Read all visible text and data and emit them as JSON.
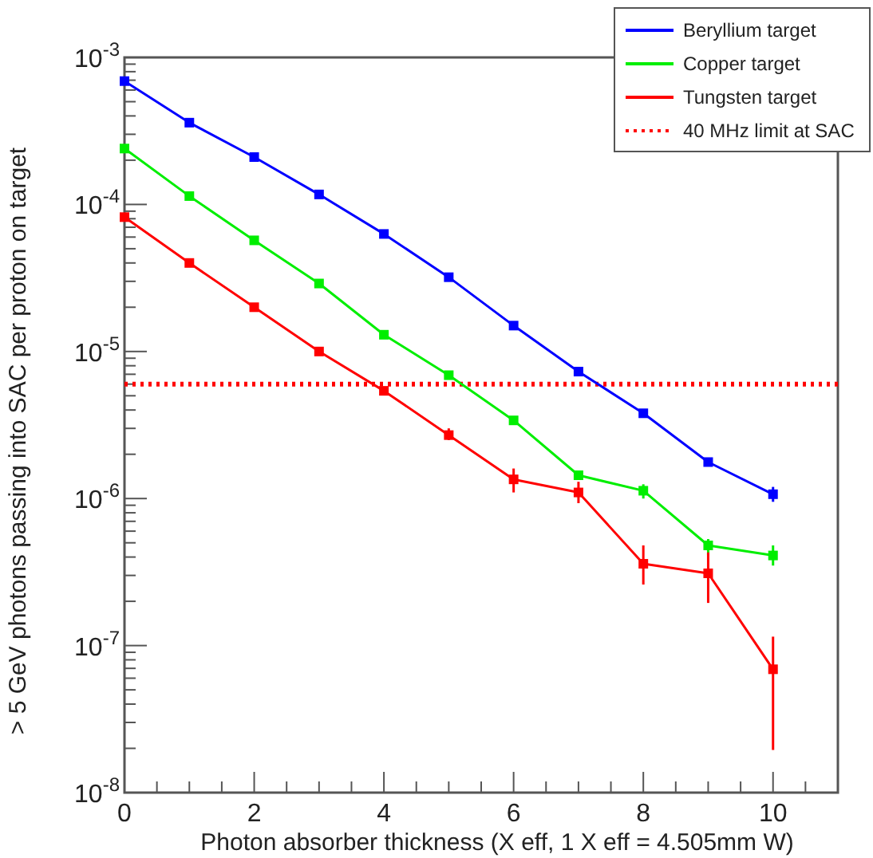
{
  "chart_data": {
    "type": "line",
    "xlabel": "Photon absorber thickness (X eff, 1 X eff = 4.505mm W)",
    "ylabel": "> 5 GeV photons passing into SAC per proton on target",
    "x": [
      0,
      1,
      2,
      3,
      4,
      5,
      6,
      7,
      8,
      9,
      10
    ],
    "series": [
      {
        "name": "Beryllium target",
        "color": "#0000ff",
        "values": [
          0.00069,
          0.00036,
          0.00021,
          0.000117,
          6.3e-05,
          3.2e-05,
          1.5e-05,
          7.3e-06,
          3.8e-06,
          1.77e-06,
          1.07e-06
        ],
        "errors": [
          null,
          null,
          null,
          null,
          null,
          null,
          null,
          null,
          null,
          null,
          [
            9.5e-07,
            1.2e-06
          ]
        ]
      },
      {
        "name": "Copper target",
        "color": "#00ee00",
        "values": [
          0.00024,
          0.000114,
          5.7e-05,
          2.9e-05,
          1.3e-05,
          6.9e-06,
          3.4e-06,
          1.44e-06,
          1.13e-06,
          4.8e-07,
          4.1e-07
        ],
        "errors": [
          null,
          null,
          null,
          null,
          null,
          null,
          null,
          null,
          [
            1e-06,
            1.25e-06
          ],
          [
            4.1e-07,
            5.3e-07
          ],
          [
            3.5e-07,
            4.8e-07
          ]
        ]
      },
      {
        "name": "Tungsten target",
        "color": "#ff0000",
        "values": [
          8.2e-05,
          4e-05,
          2e-05,
          1e-05,
          5.4e-06,
          2.7e-06,
          1.35e-06,
          1.1e-06,
          3.6e-07,
          3.1e-07,
          6.9e-08
        ],
        "errors": [
          null,
          null,
          null,
          null,
          null,
          [
            2.5e-06,
            3e-06
          ],
          [
            1.1e-06,
            1.6e-06
          ],
          [
            9.3e-07,
            1.3e-06
          ],
          [
            2.6e-07,
            4.8e-07
          ],
          [
            1.95e-07,
            4.3e-07
          ],
          [
            1.95e-08,
            1.15e-07
          ]
        ]
      }
    ],
    "ref_lines": [
      {
        "axis": "y",
        "value": 6e-06,
        "label": "40 MHz limit at SAC",
        "color": "#ff0000",
        "line_style": "dotted"
      }
    ],
    "log": "y",
    "xlim": [
      0,
      11
    ],
    "xticks": [
      0,
      2,
      4,
      6,
      8,
      10
    ],
    "ylim": [
      1e-08,
      0.001
    ],
    "yticks": [
      {
        "value": 1e-08,
        "label": "10$^{-8}$"
      },
      {
        "value": 1e-07,
        "label": "10$^{-7}$"
      },
      {
        "value": 1e-06,
        "label": "10$^{-6}$"
      },
      {
        "value": 1e-05,
        "label": "10$^{-5}$"
      },
      {
        "value": 0.0001,
        "label": "10$^{-4}$"
      },
      {
        "value": 0.001,
        "label": "10$^{-3}$"
      }
    ],
    "grid": false,
    "legend": "top right",
    "marker": "square",
    "line_style": "solid"
  }
}
